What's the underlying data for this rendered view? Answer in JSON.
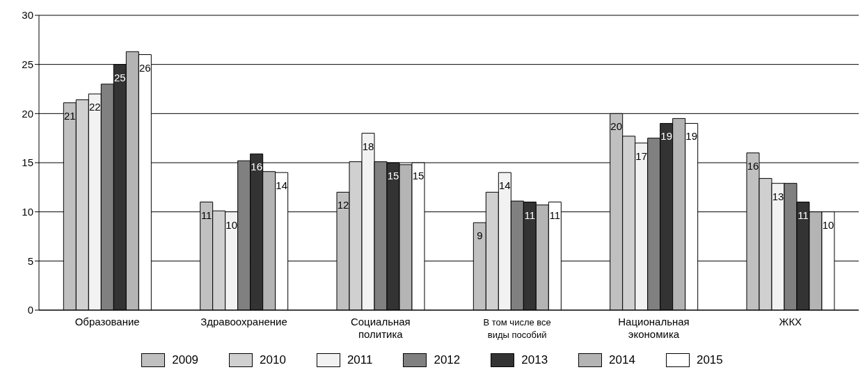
{
  "chart_data": {
    "type": "bar",
    "categories": [
      "Образование",
      "Здравоохранение",
      "Социальная политика",
      "В том числе все виды пособий",
      "Национальная экономика",
      "ЖКХ"
    ],
    "series": [
      {
        "name": "2009",
        "color": "#c0c0c0",
        "values": [
          21.1,
          11.0,
          12.0,
          8.9,
          20.0,
          16.0
        ],
        "value_labels": [
          "21",
          "11",
          "12",
          "9",
          "20",
          "16"
        ]
      },
      {
        "name": "2010",
        "color": "#d0d0d0",
        "values": [
          21.4,
          10.1,
          15.1,
          12.0,
          17.7,
          13.4
        ]
      },
      {
        "name": "2011",
        "color": "#f2f2f2",
        "values": [
          22.0,
          10.0,
          18.0,
          14.0,
          17.0,
          12.9
        ],
        "value_labels": [
          "22",
          "10",
          "18",
          "14",
          "17",
          "13"
        ]
      },
      {
        "name": "2012",
        "color": "#808080",
        "values": [
          23.0,
          15.2,
          15.1,
          11.1,
          17.5,
          12.9
        ]
      },
      {
        "name": "2013",
        "color": "#333333",
        "values": [
          25.0,
          15.9,
          15.0,
          11.0,
          19.0,
          11.0
        ],
        "value_labels": [
          "25",
          "16",
          "15",
          "11",
          "19",
          "11"
        ]
      },
      {
        "name": "2014",
        "color": "#b4b4b4",
        "values": [
          26.3,
          14.1,
          14.8,
          10.7,
          19.5,
          10.0
        ]
      },
      {
        "name": "2015",
        "color": "#ffffff",
        "values": [
          26.0,
          14.0,
          15.0,
          11.0,
          19.0,
          10.0
        ],
        "value_labels": [
          "26",
          "14",
          "15",
          "11",
          "19",
          "10"
        ]
      }
    ],
    "ylim": [
      0,
      30
    ],
    "yticks": [
      0,
      5,
      10,
      15,
      20,
      25,
      30
    ],
    "grid": "y",
    "legend": "bottom"
  }
}
